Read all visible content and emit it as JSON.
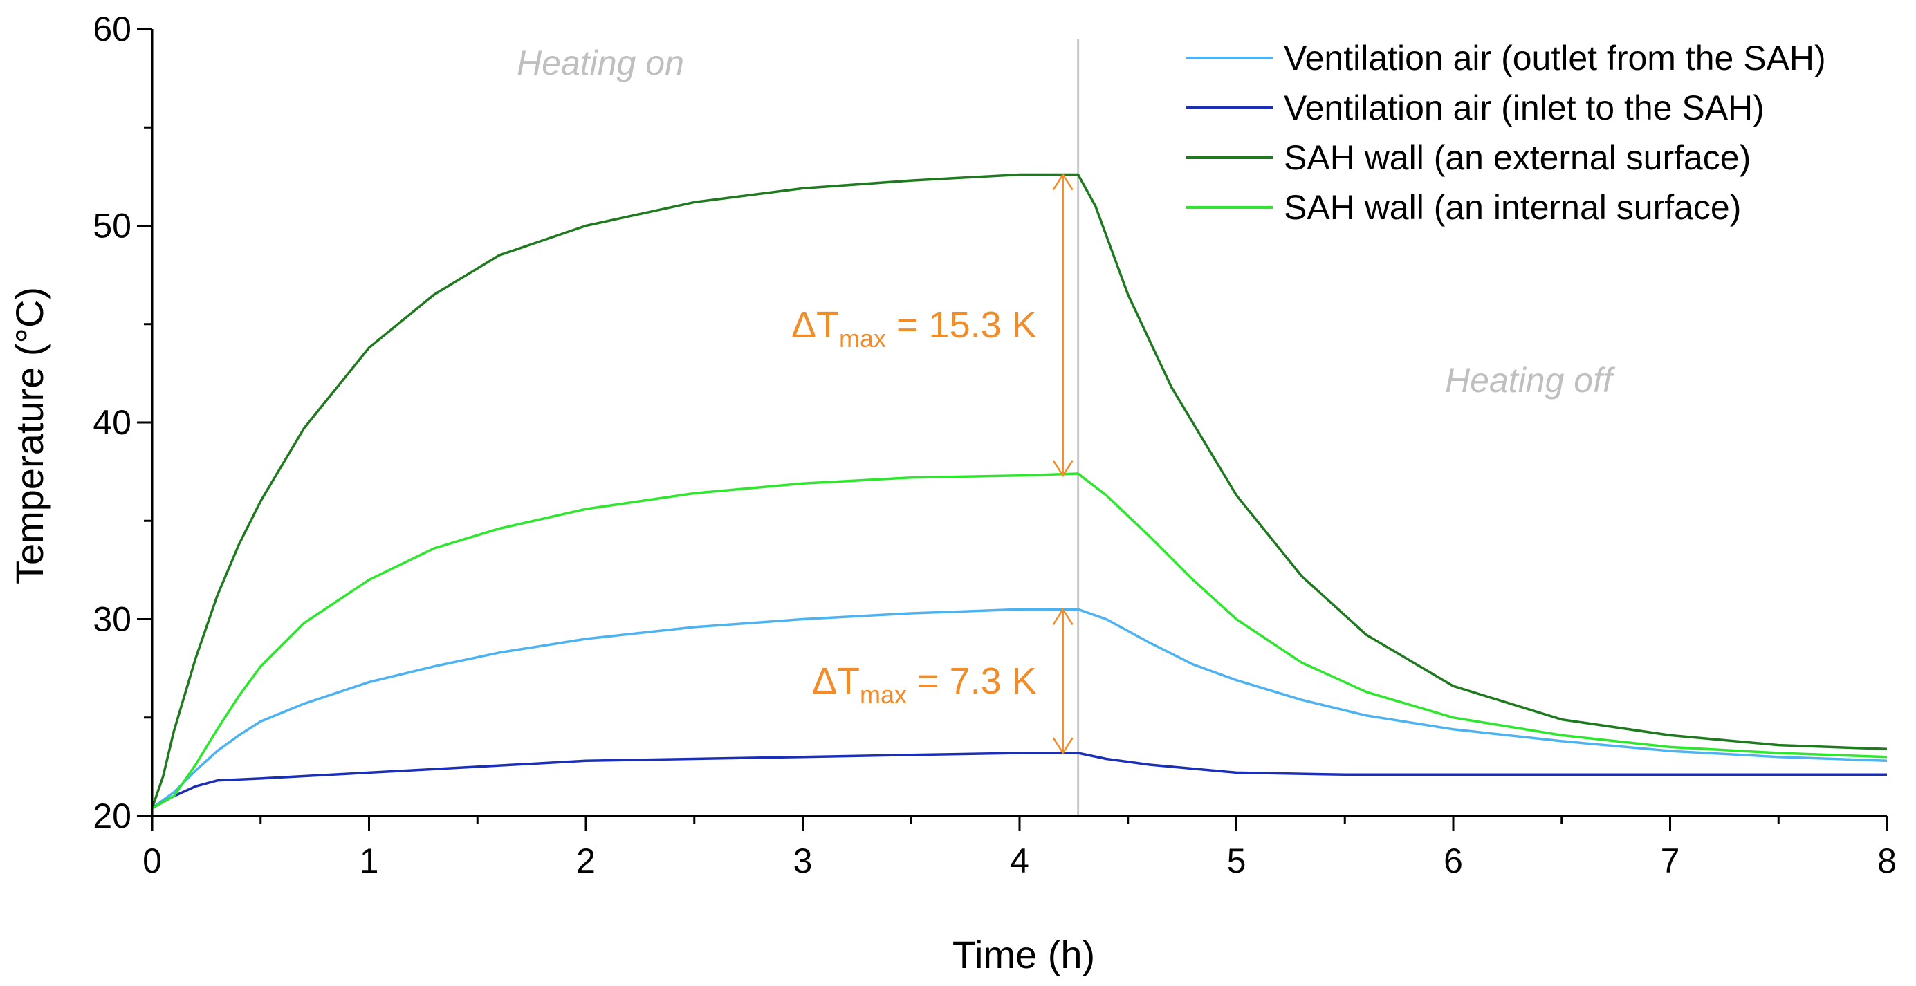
{
  "chart_data": {
    "type": "line",
    "xlabel": "Time (h)",
    "ylabel": "Temperature (°C)",
    "xlim": [
      0,
      8
    ],
    "ylim": [
      20,
      60
    ],
    "xticks": [
      "0",
      "1",
      "2",
      "3",
      "4",
      "5",
      "6",
      "7",
      "8"
    ],
    "yticks": [
      "20",
      "30",
      "40",
      "50",
      "60"
    ],
    "grid": false,
    "legend_position": "top-right",
    "heating_switch_time": 4.27,
    "annotations": {
      "heating_on": "Heating on",
      "heating_off": "Heating off",
      "dt_wall": {
        "prefix": "ΔT",
        "sub": "max",
        "suffix": " = 15.3 K",
        "x": 4.2,
        "y_from": 37.3,
        "y_to": 52.6
      },
      "dt_air": {
        "prefix": "ΔT",
        "sub": "max",
        "suffix": " = 7.3 K",
        "x": 4.2,
        "y_from": 23.2,
        "y_to": 30.5
      }
    },
    "series": [
      {
        "name": "Ventilation air (outlet from the SAH)",
        "color": "#4db3f0",
        "x": [
          0,
          0.1,
          0.2,
          0.3,
          0.4,
          0.5,
          0.7,
          1.0,
          1.3,
          1.6,
          2.0,
          2.5,
          3.0,
          3.5,
          4.0,
          4.27,
          4.4,
          4.6,
          4.8,
          5.0,
          5.3,
          5.6,
          6.0,
          6.5,
          7.0,
          7.5,
          8.0
        ],
        "y": [
          20.4,
          21.2,
          22.3,
          23.3,
          24.1,
          24.8,
          25.7,
          26.8,
          27.6,
          28.3,
          29.0,
          29.6,
          30.0,
          30.3,
          30.5,
          30.5,
          30.0,
          28.8,
          27.7,
          26.9,
          25.9,
          25.1,
          24.4,
          23.8,
          23.3,
          23.0,
          22.8
        ]
      },
      {
        "name": "Ventilation air (inlet to the SAH)",
        "color": "#1a2fb5",
        "x": [
          0,
          0.1,
          0.2,
          0.3,
          0.5,
          1.0,
          1.5,
          2.0,
          2.5,
          3.0,
          3.5,
          4.0,
          4.27,
          4.4,
          4.6,
          5.0,
          5.5,
          6.0,
          7.0,
          8.0
        ],
        "y": [
          20.4,
          21.0,
          21.5,
          21.8,
          21.9,
          22.2,
          22.5,
          22.8,
          22.9,
          23.0,
          23.1,
          23.2,
          23.2,
          22.9,
          22.6,
          22.2,
          22.1,
          22.1,
          22.1,
          22.1
        ]
      },
      {
        "name": "SAH wall (an external surface)",
        "color": "#1f7a1f",
        "x": [
          0,
          0.05,
          0.1,
          0.2,
          0.3,
          0.4,
          0.5,
          0.7,
          1.0,
          1.3,
          1.6,
          2.0,
          2.5,
          3.0,
          3.5,
          4.0,
          4.27,
          4.35,
          4.5,
          4.7,
          5.0,
          5.3,
          5.6,
          6.0,
          6.5,
          7.0,
          7.5,
          8.0
        ],
        "y": [
          20.4,
          22.0,
          24.3,
          28.0,
          31.2,
          33.8,
          36.0,
          39.7,
          43.8,
          46.5,
          48.5,
          50.0,
          51.2,
          51.9,
          52.3,
          52.6,
          52.6,
          51.0,
          46.5,
          41.8,
          36.3,
          32.2,
          29.2,
          26.6,
          24.9,
          24.1,
          23.6,
          23.4
        ]
      },
      {
        "name": "SAH wall (an internal surface)",
        "color": "#2ee62e",
        "x": [
          0,
          0.1,
          0.2,
          0.3,
          0.4,
          0.5,
          0.7,
          1.0,
          1.3,
          1.6,
          2.0,
          2.5,
          3.0,
          3.5,
          4.0,
          4.27,
          4.4,
          4.6,
          4.8,
          5.0,
          5.3,
          5.6,
          6.0,
          6.5,
          7.0,
          7.5,
          8.0
        ],
        "y": [
          20.4,
          21.0,
          22.6,
          24.4,
          26.1,
          27.6,
          29.8,
          32.0,
          33.6,
          34.6,
          35.6,
          36.4,
          36.9,
          37.2,
          37.3,
          37.4,
          36.3,
          34.2,
          32.0,
          30.0,
          27.8,
          26.3,
          25.0,
          24.1,
          23.5,
          23.2,
          23.0
        ]
      }
    ]
  }
}
